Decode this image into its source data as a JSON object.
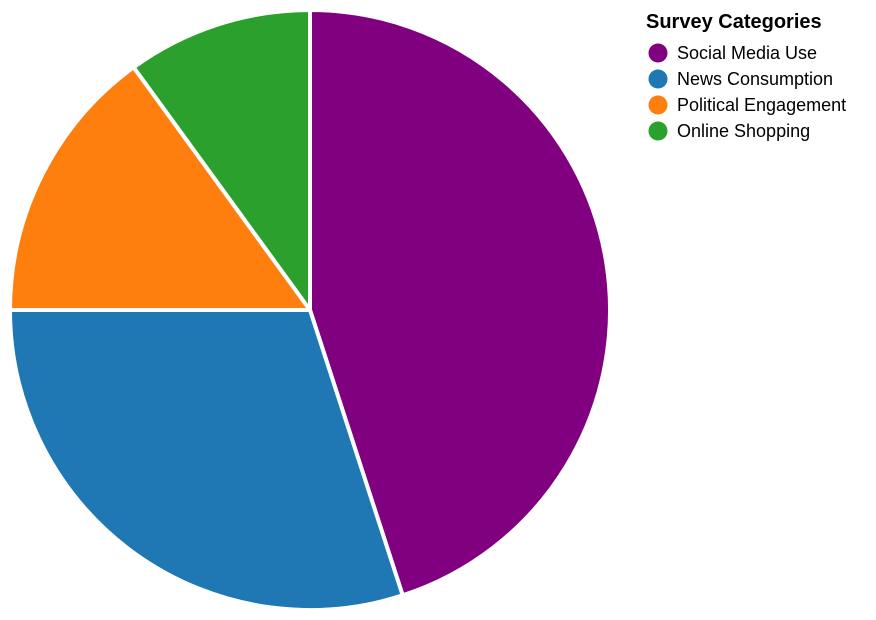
{
  "chart_data": {
    "type": "pie",
    "categories": [
      "Social Media Use",
      "News Consumption",
      "Political Engagement",
      "Online Shopping"
    ],
    "values": [
      45,
      30,
      15,
      10
    ],
    "colors": [
      "#800080",
      "#1f77b4",
      "#ff7f0e",
      "#2ca02c"
    ],
    "start_angle_deg": 0,
    "direction": "clockwise",
    "legend": {
      "title": "Survey Categories",
      "placement": "top-right"
    }
  }
}
